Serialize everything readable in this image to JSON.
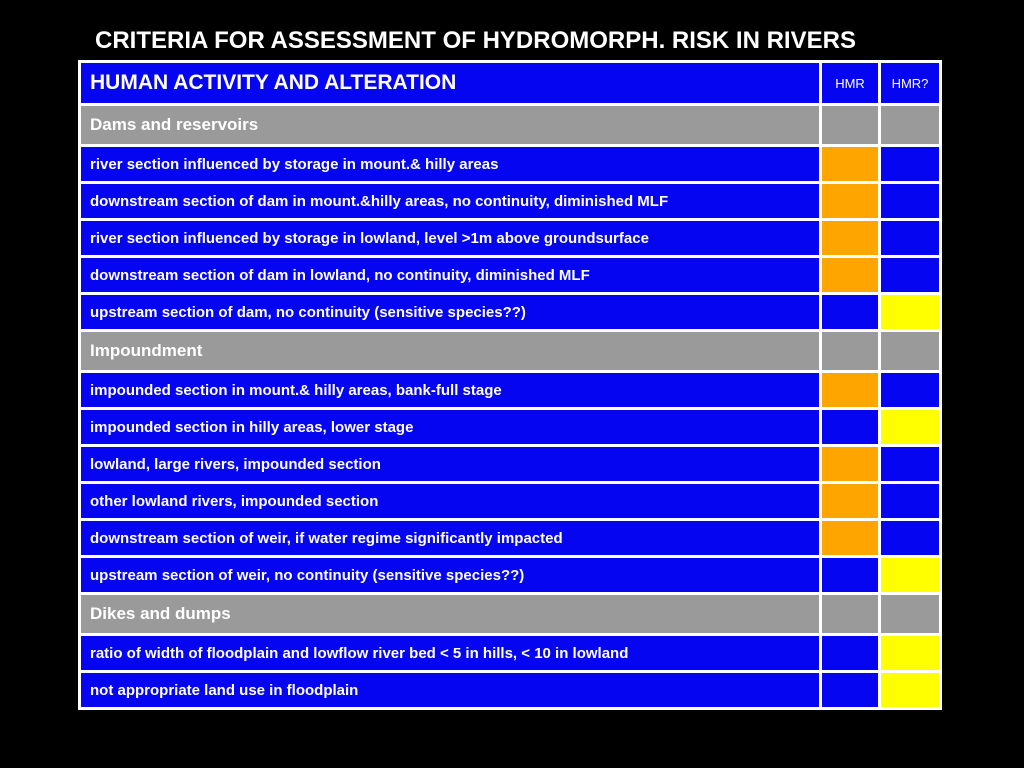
{
  "slide": {
    "title": "CRITERIA FOR ASSESSMENT OF HYDROMORPH. RISK IN RIVERS",
    "background_color": "#000000"
  },
  "table": {
    "colors": {
      "blue": "#0505f2",
      "gray": "#9a9a9a",
      "orange": "#ffa500",
      "yellow": "#ffff00",
      "border": "#ffffff"
    },
    "header": {
      "label": "HUMAN ACTIVITY AND ALTERATION",
      "hmr": "HMR",
      "hmrq": "HMR?"
    },
    "rows": [
      {
        "type": "section",
        "label": "Dams and reservoirs"
      },
      {
        "type": "data",
        "label": "river section influenced by storage in mount.& hilly areas",
        "hmr": "orange",
        "hmrq": "blue"
      },
      {
        "type": "data",
        "label": "downstream section of dam in mount.&hilly areas, no continuity, diminished MLF",
        "hmr": "orange",
        "hmrq": "blue"
      },
      {
        "type": "data",
        "label": "river section influenced by storage in lowland, level >1m above groundsurface",
        "hmr": "orange",
        "hmrq": "blue"
      },
      {
        "type": "data",
        "label": "downstream section of dam in lowland, no continuity, diminished MLF",
        "hmr": "orange",
        "hmrq": "blue"
      },
      {
        "type": "data",
        "label": "upstream section of dam, no continuity (sensitive species??)",
        "hmr": "blue",
        "hmrq": "yellow"
      },
      {
        "type": "section",
        "label": "Impoundment"
      },
      {
        "type": "data",
        "label": "impounded section in mount.& hilly areas, bank-full stage",
        "hmr": "orange",
        "hmrq": "blue"
      },
      {
        "type": "data",
        "label": "impounded section in hilly areas, lower stage",
        "hmr": "blue",
        "hmrq": "yellow"
      },
      {
        "type": "data",
        "label": "lowland, large rivers, impounded section",
        "hmr": "orange",
        "hmrq": "blue"
      },
      {
        "type": "data",
        "label": "other lowland rivers, impounded section",
        "hmr": "orange",
        "hmrq": "blue"
      },
      {
        "type": "data",
        "label": "downstream section of weir, if water regime significantly impacted",
        "hmr": "orange",
        "hmrq": "blue"
      },
      {
        "type": "data",
        "label": "upstream section of weir, no continuity (sensitive species??)",
        "hmr": "blue",
        "hmrq": "yellow"
      },
      {
        "type": "section",
        "label": "Dikes and dumps"
      },
      {
        "type": "data",
        "label": "ratio of width of floodplain and lowflow river bed < 5 in hills, < 10 in lowland",
        "hmr": "blue",
        "hmrq": "yellow"
      },
      {
        "type": "data",
        "label": "not appropriate land use in  floodplain",
        "hmr": "blue",
        "hmrq": "yellow"
      }
    ]
  }
}
